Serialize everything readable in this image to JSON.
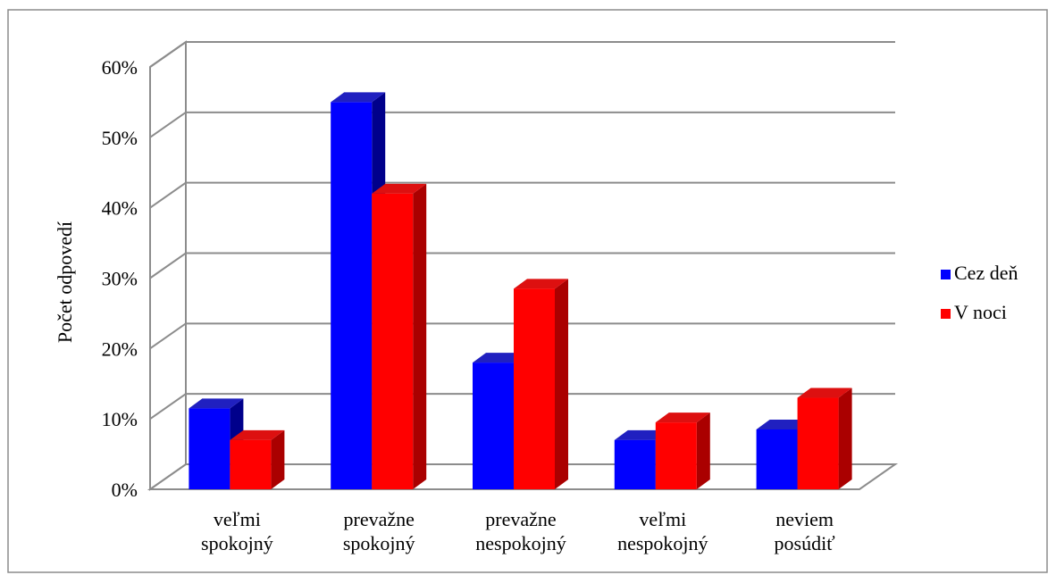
{
  "chart_data": {
    "type": "bar",
    "style": "3d-clustered-column",
    "categories": [
      [
        "veľmi",
        "spokojný"
      ],
      [
        "prevažne",
        "spokojný"
      ],
      [
        "prevažne",
        "nespokojný"
      ],
      [
        "veľmi",
        "nespokojný"
      ],
      [
        "neviem",
        "posúdiť"
      ]
    ],
    "series": [
      {
        "name": "Cez deň",
        "color": "#0000ff",
        "side_color": "#00008b",
        "top_color": "#2020c0",
        "values": [
          11.5,
          55,
          18,
          7,
          8.5
        ]
      },
      {
        "name": "V noci",
        "color": "#ff0000",
        "side_color": "#aa0000",
        "top_color": "#dd1010",
        "values": [
          7,
          42,
          28.5,
          9.5,
          13
        ]
      }
    ],
    "ylabel": "Počet odpovedí",
    "xlabel": "",
    "title": "",
    "ylim": [
      0,
      60
    ],
    "yticks": [
      "0%",
      "10%",
      "20%",
      "30%",
      "40%",
      "50%",
      "60%"
    ],
    "grid": true,
    "legend_position": "right",
    "grid_color": "#8c8c8c",
    "border_color": "#8c8c8c"
  }
}
